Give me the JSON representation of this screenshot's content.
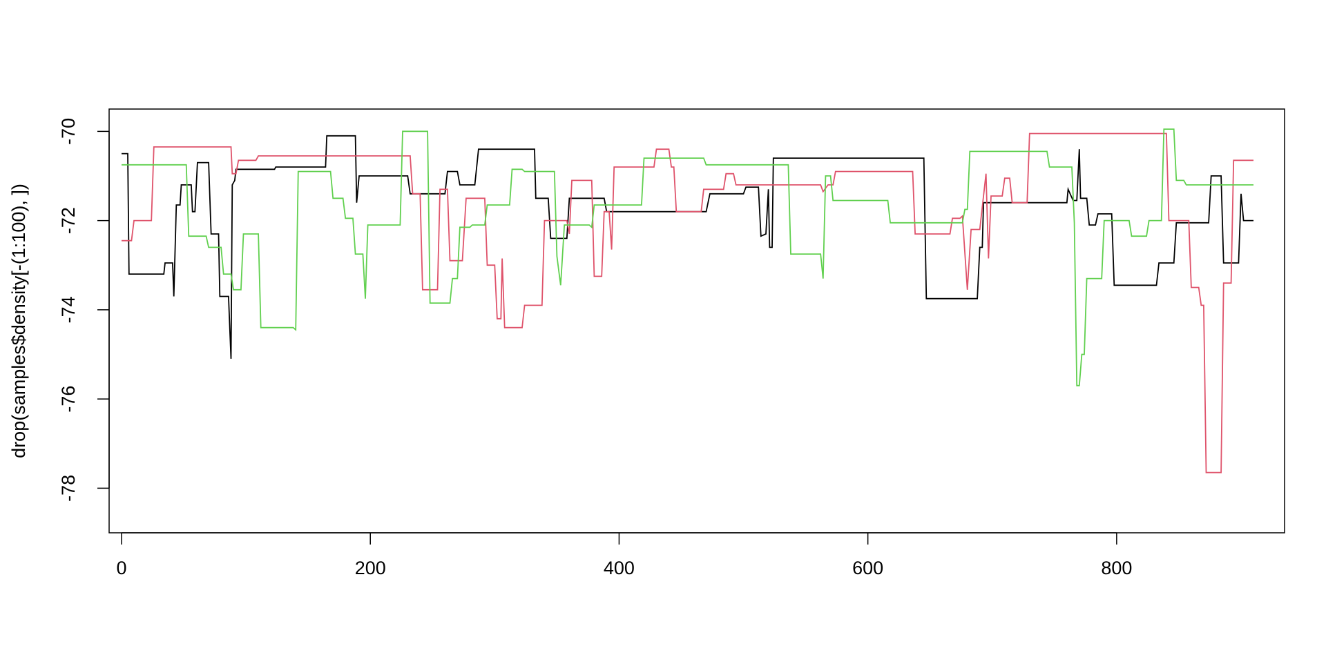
{
  "chart_data": {
    "type": "line",
    "title": "",
    "xlabel": "",
    "ylabel": "drop(samples$density[-(1:100), ])",
    "xlim": [
      -10,
      935
    ],
    "ylim": [
      -79.0,
      -69.5
    ],
    "x_ticks": [
      0,
      200,
      400,
      600,
      800
    ],
    "y_ticks": [
      -70,
      -72,
      -74,
      -76,
      -78
    ],
    "grid": false,
    "legend": "none",
    "series": [
      {
        "color": "#000000",
        "points": [
          [
            0,
            -70.5
          ],
          [
            5,
            -70.5
          ],
          [
            6,
            -73.2
          ],
          [
            34,
            -73.2
          ],
          [
            35,
            -72.95
          ],
          [
            41,
            -72.95
          ],
          [
            42,
            -73.7
          ],
          [
            44,
            -71.65
          ],
          [
            47,
            -71.65
          ],
          [
            48,
            -71.2
          ],
          [
            56,
            -71.2
          ],
          [
            57,
            -71.8
          ],
          [
            59,
            -71.8
          ],
          [
            61,
            -70.7
          ],
          [
            70,
            -70.7
          ],
          [
            72,
            -72.3
          ],
          [
            78,
            -72.3
          ],
          [
            79,
            -73.7
          ],
          [
            86,
            -73.7
          ],
          [
            88,
            -75.1
          ],
          [
            89,
            -71.2
          ],
          [
            91,
            -71.1
          ],
          [
            92,
            -70.85
          ],
          [
            123,
            -70.85
          ],
          [
            124,
            -70.8
          ],
          [
            164,
            -70.8
          ],
          [
            165,
            -70.1
          ],
          [
            188,
            -70.1
          ],
          [
            189,
            -71.6
          ],
          [
            191,
            -71.0
          ],
          [
            230,
            -71.0
          ],
          [
            232,
            -71.4
          ],
          [
            260,
            -71.4
          ],
          [
            262,
            -70.9
          ],
          [
            270,
            -70.9
          ],
          [
            272,
            -71.2
          ],
          [
            284,
            -71.2
          ],
          [
            287,
            -70.4
          ],
          [
            332,
            -70.4
          ],
          [
            333,
            -71.5
          ],
          [
            343,
            -71.5
          ],
          [
            345,
            -72.4
          ],
          [
            358,
            -72.4
          ],
          [
            360,
            -71.5
          ],
          [
            388,
            -71.5
          ],
          [
            390,
            -71.8
          ],
          [
            470,
            -71.8
          ],
          [
            473,
            -71.4
          ],
          [
            500,
            -71.4
          ],
          [
            502,
            -71.25
          ],
          [
            512,
            -71.25
          ],
          [
            514,
            -72.35
          ],
          [
            518,
            -72.3
          ],
          [
            520,
            -71.3
          ],
          [
            521,
            -72.6
          ],
          [
            523,
            -72.6
          ],
          [
            524,
            -70.6
          ],
          [
            645,
            -70.6
          ],
          [
            647,
            -73.75
          ],
          [
            688,
            -73.75
          ],
          [
            690,
            -72.6
          ],
          [
            692,
            -72.6
          ],
          [
            693,
            -71.6
          ],
          [
            760,
            -71.6
          ],
          [
            761,
            -71.3
          ],
          [
            765,
            -71.55
          ],
          [
            768,
            -71.55
          ],
          [
            770,
            -70.4
          ],
          [
            771,
            -71.5
          ],
          [
            776,
            -71.5
          ],
          [
            778,
            -72.1
          ],
          [
            783,
            -72.1
          ],
          [
            785,
            -71.85
          ],
          [
            796,
            -71.85
          ],
          [
            798,
            -73.45
          ],
          [
            832,
            -73.45
          ],
          [
            834,
            -72.95
          ],
          [
            846,
            -72.95
          ],
          [
            848,
            -72.05
          ],
          [
            874,
            -72.05
          ],
          [
            876,
            -71.0
          ],
          [
            884,
            -71.0
          ],
          [
            886,
            -72.95
          ],
          [
            898,
            -72.95
          ],
          [
            900,
            -71.4
          ],
          [
            902,
            -72.0
          ],
          [
            910,
            -72.0
          ]
        ]
      },
      {
        "color": "#DF536B",
        "points": [
          [
            0,
            -72.45
          ],
          [
            8,
            -72.45
          ],
          [
            10,
            -72.0
          ],
          [
            24,
            -72.0
          ],
          [
            26,
            -70.35
          ],
          [
            88,
            -70.35
          ],
          [
            89,
            -70.95
          ],
          [
            92,
            -70.95
          ],
          [
            94,
            -70.65
          ],
          [
            108,
            -70.65
          ],
          [
            110,
            -70.55
          ],
          [
            232,
            -70.55
          ],
          [
            234,
            -71.4
          ],
          [
            240,
            -71.4
          ],
          [
            242,
            -73.55
          ],
          [
            254,
            -73.55
          ],
          [
            256,
            -71.3
          ],
          [
            262,
            -71.3
          ],
          [
            264,
            -72.9
          ],
          [
            274,
            -72.9
          ],
          [
            277,
            -71.5
          ],
          [
            292,
            -71.5
          ],
          [
            294,
            -73.0
          ],
          [
            300,
            -73.0
          ],
          [
            302,
            -74.2
          ],
          [
            305,
            -74.2
          ],
          [
            306,
            -72.85
          ],
          [
            308,
            -74.4
          ],
          [
            322,
            -74.4
          ],
          [
            324,
            -73.9
          ],
          [
            338,
            -73.9
          ],
          [
            340,
            -72.0
          ],
          [
            358,
            -72.0
          ],
          [
            360,
            -72.3
          ],
          [
            362,
            -71.1
          ],
          [
            378,
            -71.1
          ],
          [
            380,
            -73.25
          ],
          [
            386,
            -73.25
          ],
          [
            388,
            -71.8
          ],
          [
            392,
            -71.8
          ],
          [
            394,
            -72.65
          ],
          [
            396,
            -70.8
          ],
          [
            428,
            -70.8
          ],
          [
            430,
            -70.4
          ],
          [
            440,
            -70.4
          ],
          [
            442,
            -70.8
          ],
          [
            444,
            -70.8
          ],
          [
            446,
            -71.8
          ],
          [
            466,
            -71.8
          ],
          [
            468,
            -71.3
          ],
          [
            484,
            -71.3
          ],
          [
            486,
            -70.95
          ],
          [
            492,
            -70.95
          ],
          [
            494,
            -71.2
          ],
          [
            562,
            -71.2
          ],
          [
            564,
            -71.35
          ],
          [
            568,
            -71.2
          ],
          [
            572,
            -71.2
          ],
          [
            574,
            -70.9
          ],
          [
            636,
            -70.9
          ],
          [
            638,
            -72.3
          ],
          [
            666,
            -72.3
          ],
          [
            668,
            -71.95
          ],
          [
            674,
            -71.95
          ],
          [
            676,
            -71.9
          ],
          [
            680,
            -73.55
          ],
          [
            683,
            -72.2
          ],
          [
            690,
            -72.2
          ],
          [
            692,
            -71.7
          ],
          [
            695,
            -70.95
          ],
          [
            697,
            -72.85
          ],
          [
            699,
            -71.45
          ],
          [
            708,
            -71.45
          ],
          [
            710,
            -71.05
          ],
          [
            714,
            -71.05
          ],
          [
            716,
            -71.6
          ],
          [
            728,
            -71.6
          ],
          [
            730,
            -70.05
          ],
          [
            840,
            -70.05
          ],
          [
            842,
            -72.0
          ],
          [
            858,
            -72.0
          ],
          [
            860,
            -73.5
          ],
          [
            866,
            -73.5
          ],
          [
            868,
            -73.9
          ],
          [
            870,
            -73.9
          ],
          [
            872,
            -77.65
          ],
          [
            884,
            -77.65
          ],
          [
            886,
            -73.4
          ],
          [
            892,
            -73.4
          ],
          [
            894,
            -70.65
          ],
          [
            910,
            -70.65
          ]
        ]
      },
      {
        "color": "#61D04F",
        "points": [
          [
            0,
            -70.75
          ],
          [
            52,
            -70.75
          ],
          [
            54,
            -72.35
          ],
          [
            68,
            -72.35
          ],
          [
            70,
            -72.6
          ],
          [
            80,
            -72.6
          ],
          [
            82,
            -73.2
          ],
          [
            88,
            -73.2
          ],
          [
            90,
            -73.55
          ],
          [
            96,
            -73.55
          ],
          [
            98,
            -72.3
          ],
          [
            110,
            -72.3
          ],
          [
            112,
            -74.4
          ],
          [
            138,
            -74.4
          ],
          [
            140,
            -74.45
          ],
          [
            142,
            -70.9
          ],
          [
            168,
            -70.9
          ],
          [
            170,
            -71.5
          ],
          [
            178,
            -71.5
          ],
          [
            180,
            -71.95
          ],
          [
            186,
            -71.95
          ],
          [
            188,
            -72.75
          ],
          [
            194,
            -72.75
          ],
          [
            196,
            -73.75
          ],
          [
            198,
            -72.1
          ],
          [
            224,
            -72.1
          ],
          [
            226,
            -70.0
          ],
          [
            246,
            -70.0
          ],
          [
            248,
            -73.85
          ],
          [
            264,
            -73.85
          ],
          [
            266,
            -73.3
          ],
          [
            270,
            -73.3
          ],
          [
            272,
            -72.15
          ],
          [
            280,
            -72.15
          ],
          [
            282,
            -72.1
          ],
          [
            292,
            -72.1
          ],
          [
            294,
            -71.65
          ],
          [
            312,
            -71.65
          ],
          [
            314,
            -70.85
          ],
          [
            322,
            -70.85
          ],
          [
            324,
            -70.9
          ],
          [
            348,
            -70.9
          ],
          [
            350,
            -72.8
          ],
          [
            353,
            -73.45
          ],
          [
            356,
            -72.1
          ],
          [
            376,
            -72.1
          ],
          [
            378,
            -72.15
          ],
          [
            380,
            -71.65
          ],
          [
            418,
            -71.65
          ],
          [
            420,
            -70.6
          ],
          [
            468,
            -70.6
          ],
          [
            470,
            -70.75
          ],
          [
            536,
            -70.75
          ],
          [
            538,
            -72.75
          ],
          [
            562,
            -72.75
          ],
          [
            564,
            -73.3
          ],
          [
            566,
            -71.0
          ],
          [
            570,
            -71.0
          ],
          [
            572,
            -71.55
          ],
          [
            616,
            -71.55
          ],
          [
            618,
            -72.05
          ],
          [
            676,
            -72.05
          ],
          [
            678,
            -71.75
          ],
          [
            680,
            -71.75
          ],
          [
            682,
            -70.45
          ],
          [
            744,
            -70.45
          ],
          [
            746,
            -70.8
          ],
          [
            764,
            -70.8
          ],
          [
            766,
            -72.05
          ],
          [
            768,
            -75.7
          ],
          [
            770,
            -75.7
          ],
          [
            772,
            -75.0
          ],
          [
            774,
            -75.0
          ],
          [
            776,
            -73.3
          ],
          [
            788,
            -73.3
          ],
          [
            790,
            -72.0
          ],
          [
            810,
            -72.0
          ],
          [
            812,
            -72.35
          ],
          [
            824,
            -72.35
          ],
          [
            826,
            -72.0
          ],
          [
            836,
            -72.0
          ],
          [
            838,
            -69.95
          ],
          [
            846,
            -69.95
          ],
          [
            848,
            -71.1
          ],
          [
            854,
            -71.1
          ],
          [
            856,
            -71.2
          ],
          [
            910,
            -71.2
          ]
        ]
      }
    ]
  }
}
